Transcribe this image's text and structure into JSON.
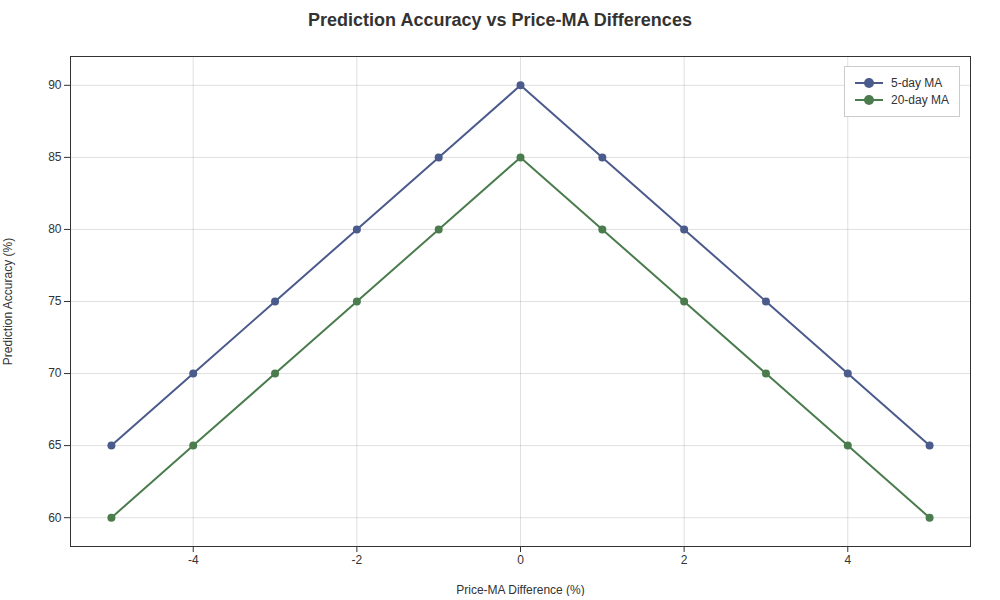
{
  "chart_data": {
    "type": "line",
    "title": "Prediction Accuracy vs Price-MA Differences",
    "xlabel": "Price-MA Difference (%)",
    "ylabel": "Prediction Accuracy (%)",
    "x": [
      -5,
      -4,
      -3,
      -2,
      -1,
      0,
      1,
      2,
      3,
      4,
      5
    ],
    "series": [
      {
        "name": "5-day MA",
        "color": "#4a5b8c",
        "marker": "circle",
        "values": [
          65,
          70,
          75,
          80,
          85,
          90,
          85,
          80,
          75,
          70,
          65
        ]
      },
      {
        "name": "20-day MA",
        "color": "#4a7c4e",
        "marker": "circle",
        "values": [
          60,
          65,
          70,
          75,
          80,
          85,
          80,
          75,
          70,
          65,
          60
        ]
      }
    ],
    "xlim": [
      -5.5,
      5.5
    ],
    "xticks": [
      -4,
      -2,
      0,
      2,
      4
    ],
    "ylim": [
      58,
      92
    ],
    "yticks": [
      60,
      65,
      70,
      75,
      80,
      85,
      90
    ],
    "grid": true,
    "legend": "upper right"
  }
}
